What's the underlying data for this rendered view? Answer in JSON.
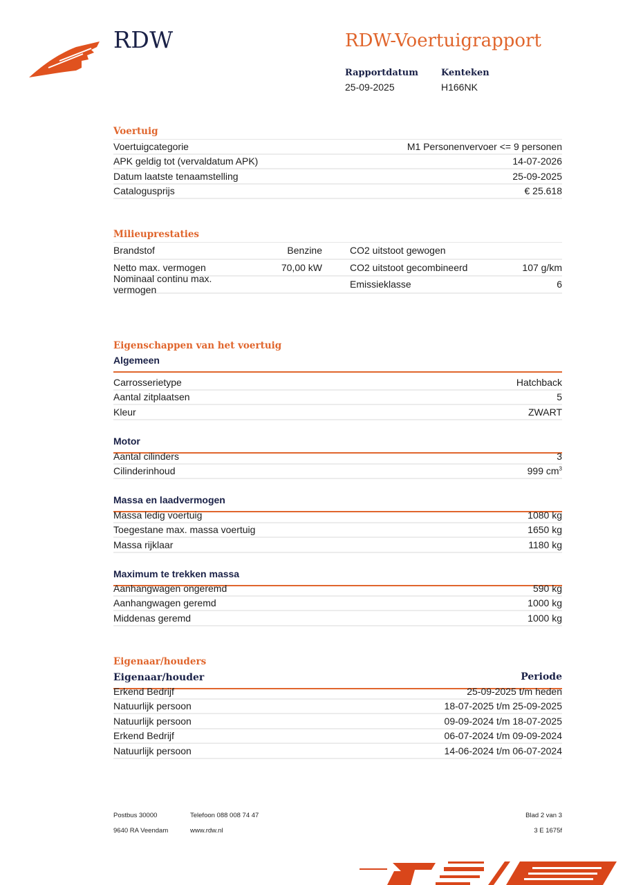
{
  "header": {
    "brand": "RDW",
    "title": "RDW-Voertuigrapport",
    "report_date_label": "Rapportdatum",
    "report_date": "25-09-2025",
    "plate_label": "Kenteken",
    "plate": "H166NK",
    "brand_color": "#e0521f",
    "navy": "#1a2147"
  },
  "voertuig": {
    "title": "Voertuig",
    "rows": [
      {
        "label": "Voertuigcategorie",
        "value": "M1 Personenvervoer <= 9 personen"
      },
      {
        "label": "APK geldig tot (vervaldatum APK)",
        "value": "14-07-2026"
      },
      {
        "label": "Datum laatste tenaamstelling",
        "value": "25-09-2025"
      },
      {
        "label": "Catalogusprijs",
        "value": "€ 25.618"
      }
    ]
  },
  "milieu": {
    "title": "Milieuprestaties",
    "rows": [
      {
        "l1": "Brandstof",
        "v1": "Benzine",
        "l2": "CO2 uitstoot gewogen",
        "v2": ""
      },
      {
        "l1": "Netto max. vermogen",
        "v1": "70,00 kW",
        "l2": "CO2 uitstoot gecombineerd",
        "v2": "107 g/km"
      },
      {
        "l1": "Nominaal continu max. vermogen",
        "v1": "",
        "l2": "Emissieklasse",
        "v2": "6"
      }
    ]
  },
  "eigenschappen": {
    "title": "Eigenschappen van het voertuig",
    "groups": [
      {
        "title": "Algemeen",
        "rows": [
          {
            "label": "Carrosserietype",
            "value": "Hatchback"
          },
          {
            "label": "Aantal zitplaatsen",
            "value": "5"
          },
          {
            "label": "Kleur",
            "value": "ZWART"
          }
        ]
      },
      {
        "title": "Motor",
        "rows": [
          {
            "label": "Aantal cilinders",
            "value": "3"
          },
          {
            "label": "Cilinderinhoud",
            "value": "999 cm",
            "sup": "3"
          }
        ]
      },
      {
        "title": "Massa en laadvermogen",
        "rows": [
          {
            "label": "Massa ledig voertuig",
            "value": "1080 kg"
          },
          {
            "label": "Toegestane max. massa voertuig",
            "value": "1650 kg"
          },
          {
            "label": "Massa rijklaar",
            "value": "1180 kg"
          }
        ]
      },
      {
        "title": "Maximum te trekken massa",
        "rows": [
          {
            "label": "Aanhangwagen ongeremd",
            "value": "590 kg"
          },
          {
            "label": "Aanhangwagen geremd",
            "value": "1000 kg"
          },
          {
            "label": "Middenas geremd",
            "value": "1000 kg"
          }
        ]
      }
    ]
  },
  "eigenaar": {
    "title": "Eigenaar/houders",
    "col_left": "Eigenaar/houder",
    "col_right": "Periode",
    "rows": [
      {
        "label": "Erkend Bedrijf",
        "value": "25-09-2025 t/m heden"
      },
      {
        "label": "Natuurlijk persoon",
        "value": "18-07-2025 t/m 25-09-2025"
      },
      {
        "label": "Natuurlijk persoon",
        "value": "09-09-2024 t/m 18-07-2025"
      },
      {
        "label": "Erkend Bedrijf",
        "value": "06-07-2024 t/m 09-09-2024"
      },
      {
        "label": "Natuurlijk persoon",
        "value": "14-06-2024 t/m 06-07-2024"
      }
    ]
  },
  "footer": {
    "postbus": "Postbus 30000",
    "city": "9640 RA Veendam",
    "phone": "Telefoon 088 008 74 47",
    "web": "www.rdw.nl",
    "page": "Blad 2 van 3",
    "code": "3 E 1675f"
  }
}
